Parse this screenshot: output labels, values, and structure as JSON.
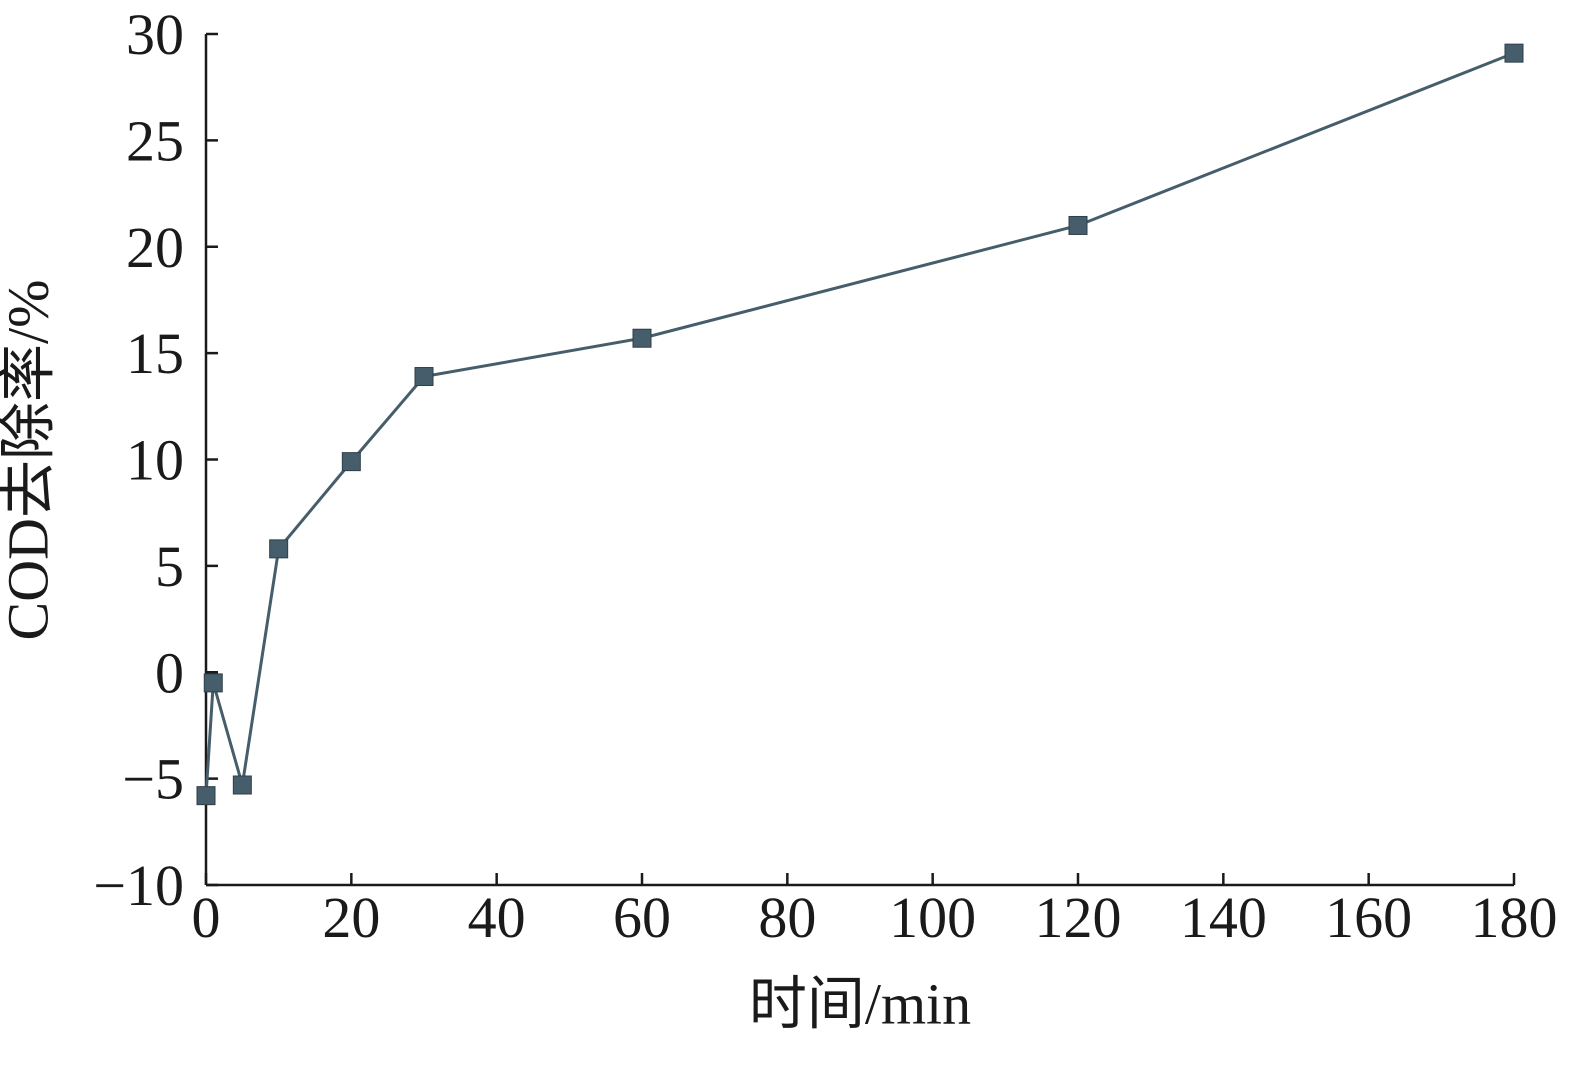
{
  "chart_data": {
    "type": "line",
    "title": "",
    "xlabel": "时间/min",
    "ylabel": "COD去除率/%",
    "xlim": [
      0,
      180
    ],
    "ylim": [
      -10,
      30
    ],
    "xticks": [
      0,
      20,
      40,
      60,
      80,
      100,
      120,
      140,
      160,
      180
    ],
    "yticks": [
      -10,
      -5,
      0,
      5,
      10,
      15,
      20,
      25,
      30
    ],
    "xtick_labels": [
      "0",
      "20",
      "40",
      "60",
      "80",
      "100",
      "120",
      "140",
      "160",
      "180"
    ],
    "ytick_labels": [
      "−10",
      "−5",
      "0",
      "5",
      "10",
      "15",
      "20",
      "25",
      "30"
    ],
    "grid": false,
    "legend": "none",
    "series": [
      {
        "color": "#465d6b",
        "marker": "square",
        "points": [
          {
            "x": 0,
            "y": -5.8
          },
          {
            "x": 1,
            "y": -0.5
          },
          {
            "x": 5,
            "y": -5.3
          },
          {
            "x": 10,
            "y": 5.8
          },
          {
            "x": 20,
            "y": 9.9
          },
          {
            "x": 30,
            "y": 13.9
          },
          {
            "x": 60,
            "y": 15.7
          },
          {
            "x": 120,
            "y": 21.0
          },
          {
            "x": 180,
            "y": 29.1
          }
        ]
      }
    ]
  }
}
